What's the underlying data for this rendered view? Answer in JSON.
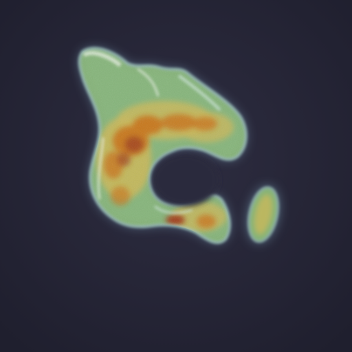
{
  "image": {
    "subject": "glowing-organism",
    "background_color": "#2a2a3c",
    "background_vignette": "#1f1f2e",
    "palette": {
      "halo": "#b9dde6",
      "rim": "#9fd6c8",
      "green": "#8fc27a",
      "yellow": "#c9b85a",
      "orange": "#c8781e",
      "rust": "#a0401c",
      "highlight": "#e8f1e4"
    }
  }
}
